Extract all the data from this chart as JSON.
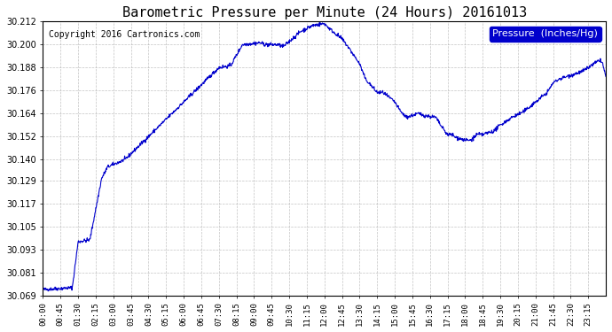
{
  "title": "Barometric Pressure per Minute (24 Hours) 20161013",
  "copyright": "Copyright 2016 Cartronics.com",
  "legend_label": "Pressure  (Inches/Hg)",
  "line_color": "#0000cc",
  "background_color": "#ffffff",
  "plot_bg_color": "#ffffff",
  "grid_color": "#aaaaaa",
  "ylim": [
    30.069,
    30.212
  ],
  "yticks": [
    30.069,
    30.081,
    30.093,
    30.105,
    30.117,
    30.129,
    30.14,
    30.152,
    30.164,
    30.176,
    30.188,
    30.2,
    30.212
  ],
  "xtick_labels": [
    "00:00",
    "00:45",
    "01:30",
    "02:15",
    "03:00",
    "03:45",
    "04:30",
    "05:15",
    "06:00",
    "06:45",
    "07:30",
    "08:15",
    "09:00",
    "09:45",
    "10:30",
    "11:15",
    "12:00",
    "12:45",
    "13:30",
    "14:15",
    "15:00",
    "15:45",
    "16:30",
    "17:15",
    "18:00",
    "18:45",
    "19:30",
    "20:15",
    "21:00",
    "21:45",
    "22:30",
    "23:15"
  ]
}
